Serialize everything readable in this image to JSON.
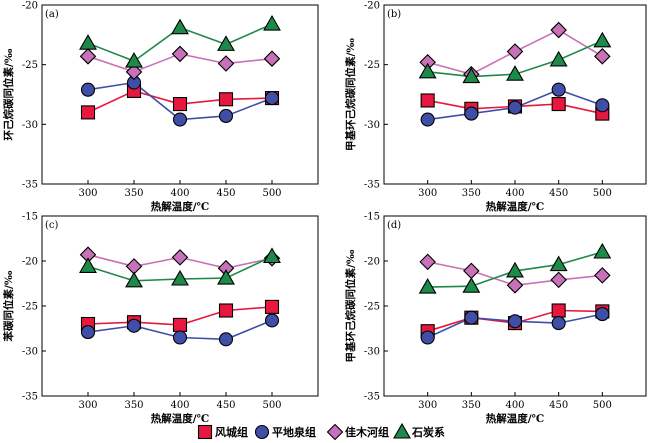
{
  "legend": [
    {
      "label": "风城组",
      "marker": "square",
      "fill": "#e8173f"
    },
    {
      "label": "平地泉组",
      "marker": "circle",
      "fill": "#3f4fa8"
    },
    {
      "label": "佳木河组",
      "marker": "diamond",
      "fill": "#c870b8"
    },
    {
      "label": "石炭系",
      "marker": "triangle",
      "fill": "#1e8a4a"
    }
  ],
  "chart_data": [
    {
      "type": "line",
      "panel_label": "(a)",
      "xlabel": "热解温度/℃",
      "ylabel": "环己烷碳同位素/‰",
      "x": [
        300,
        350,
        400,
        450,
        500
      ],
      "ylim": [
        -35,
        -20
      ],
      "yticks": [
        -35,
        -30,
        -25,
        -20
      ],
      "series": [
        {
          "name": "风城组",
          "values": [
            -29.0,
            -27.2,
            -28.3,
            -27.9,
            -27.8
          ]
        },
        {
          "name": "平地泉组",
          "values": [
            -27.1,
            -26.5,
            -29.6,
            -29.3,
            -27.8
          ]
        },
        {
          "name": "佳木河组",
          "values": [
            -24.3,
            -25.6,
            -24.1,
            -24.9,
            -24.5
          ]
        },
        {
          "name": "石炭系",
          "values": [
            -23.2,
            -24.7,
            -21.9,
            -23.3,
            -21.6
          ]
        }
      ]
    },
    {
      "type": "line",
      "panel_label": "(b)",
      "xlabel": "热解温度/℃",
      "ylabel": "甲基环己烷碳同位素/‰",
      "x": [
        300,
        350,
        400,
        450,
        500
      ],
      "ylim": [
        -35,
        -20
      ],
      "yticks": [
        -35,
        -30,
        -25,
        -20
      ],
      "series": [
        {
          "name": "风城组",
          "values": [
            -28.0,
            -28.7,
            -28.5,
            -28.3,
            -29.1
          ]
        },
        {
          "name": "平地泉组",
          "values": [
            -29.6,
            -29.1,
            -28.6,
            -27.1,
            -28.4
          ]
        },
        {
          "name": "佳木河组",
          "values": [
            -24.8,
            -25.8,
            -23.9,
            -22.1,
            -24.3
          ]
        },
        {
          "name": "石炭系",
          "values": [
            -25.6,
            -26.0,
            -25.8,
            -24.6,
            -23.0
          ]
        }
      ]
    },
    {
      "type": "line",
      "panel_label": "(c)",
      "xlabel": "热解温度/℃",
      "ylabel": "苯碳同位素/‰",
      "x": [
        300,
        350,
        400,
        450,
        500
      ],
      "ylim": [
        -35,
        -15
      ],
      "yticks": [
        -35,
        -30,
        -25,
        -20,
        -15
      ],
      "series": [
        {
          "name": "风城组",
          "values": [
            -27.0,
            -26.8,
            -27.1,
            -25.5,
            -25.1
          ]
        },
        {
          "name": "平地泉组",
          "values": [
            -27.9,
            -27.2,
            -28.5,
            -28.7,
            -26.6
          ]
        },
        {
          "name": "佳木河组",
          "values": [
            -19.3,
            -20.6,
            -19.6,
            -20.8,
            -19.7
          ]
        },
        {
          "name": "石炭系",
          "values": [
            -20.6,
            -22.2,
            -22.0,
            -21.9,
            -19.5
          ]
        }
      ]
    },
    {
      "type": "line",
      "panel_label": "(d)",
      "xlabel": "热解温度/℃",
      "ylabel": "甲基环己烷碳同位素/‰",
      "x": [
        300,
        350,
        400,
        450,
        500
      ],
      "ylim": [
        -35,
        -15
      ],
      "yticks": [
        -35,
        -30,
        -25,
        -20,
        -15
      ],
      "series": [
        {
          "name": "风城组",
          "values": [
            -27.8,
            -26.3,
            -26.9,
            -25.5,
            -25.6
          ]
        },
        {
          "name": "平地泉组",
          "values": [
            -28.5,
            -26.3,
            -26.7,
            -26.9,
            -25.9
          ]
        },
        {
          "name": "佳木河组",
          "values": [
            -20.1,
            -21.1,
            -22.7,
            -22.1,
            -21.6
          ]
        },
        {
          "name": "石炭系",
          "values": [
            -22.9,
            -22.8,
            -21.1,
            -20.4,
            -19.0
          ]
        }
      ]
    }
  ]
}
